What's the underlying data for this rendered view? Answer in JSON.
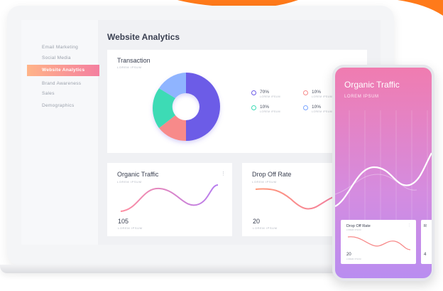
{
  "sidebar": {
    "items": [
      {
        "label": "Email Marketing",
        "active": false
      },
      {
        "label": "Social Media",
        "active": false
      },
      {
        "label": "Website Analytics",
        "active": true
      },
      {
        "label": "Brand Awareness",
        "active": false
      },
      {
        "label": "Sales",
        "active": false
      },
      {
        "label": "Demographics",
        "active": false
      }
    ]
  },
  "page": {
    "title": "Website Analytics"
  },
  "transaction": {
    "title": "Transaction",
    "subtitle": "LOREM IPSUM",
    "legend": [
      {
        "value": "70%",
        "label": "LOREM IPSUM",
        "color": "#6c5ce7"
      },
      {
        "value": "10%",
        "label": "LOREM IPSUM",
        "color": "#f78a8a"
      },
      {
        "value": "10%",
        "label": "LOREM IPSUM",
        "color": "#3ddbb5"
      },
      {
        "value": "10%",
        "label": "LOREM IPSUM",
        "color": "#7aa5ff"
      }
    ]
  },
  "organic": {
    "title": "Organic Traffic",
    "subtitle": "LOREM IPSUM",
    "value": "105",
    "value_label": "LOREM IPSUM"
  },
  "dropoff": {
    "title": "Drop Off Rate",
    "subtitle": "LOREM IPSUM",
    "value": "20",
    "value_label": "LOREM IPSUM"
  },
  "phone": {
    "title": "Organic Traffic",
    "subtitle": "LOREM IPSUM",
    "card": {
      "title": "Drop Off Rate",
      "subtitle": "LOREM IPSUM",
      "value": "20",
      "value_label": "LOREM IPSUM"
    },
    "card2": {
      "title": "R",
      "value": "4"
    }
  },
  "colors": {
    "accent_start": "#ffb488",
    "accent_end": "#f47fa0",
    "orange": "#ff7a1a"
  }
}
